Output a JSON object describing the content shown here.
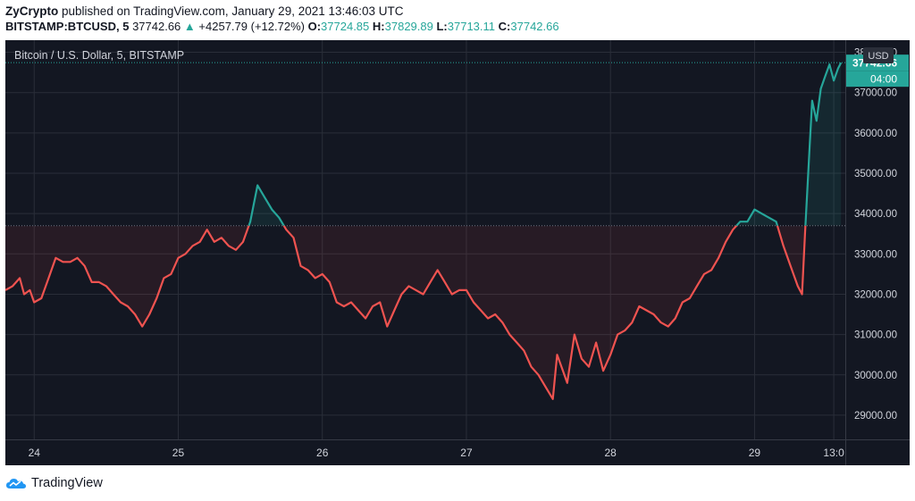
{
  "publish_line": {
    "author": "ZyCrypto",
    "text": "published on TradingView.com, January 29, 2021 13:46:03 UTC"
  },
  "quote_line": {
    "symbol": "BITSTAMP:BTCUSD, 5",
    "last": "37742.66",
    "arrow": "▲",
    "change": "+4257.79 (+12.72%)",
    "o_label": "O:",
    "o_value": "37724.85",
    "h_label": "H:",
    "h_value": "37829.89",
    "l_label": "L:",
    "l_value": "37713.11",
    "c_label": "C:",
    "c_value": "37742.66"
  },
  "colors": {
    "background": "#131722",
    "grid": "#2a2e39",
    "up": "#26a69a",
    "down": "#ef5350",
    "axis_text": "#d1d4dc"
  },
  "footer": {
    "logo_icon": "tradingview-cloud-icon",
    "text": "TradingView"
  },
  "chart_data": {
    "type": "line",
    "title": "Bitcoin / U.S. Dollar, 5, BITSTAMP",
    "currency": "USD",
    "ylim": [
      28400,
      38300
    ],
    "yticks": [
      "38000.00",
      "37000.00",
      "36000.00",
      "35000.00",
      "34000.00",
      "33000.00",
      "32000.00",
      "31000.00",
      "30000.00",
      "29000.00"
    ],
    "yticks_values": [
      38000,
      37000,
      36000,
      35000,
      34000,
      33000,
      32000,
      31000,
      30000,
      29000
    ],
    "xticks": [
      {
        "label": "24",
        "t": 24
      },
      {
        "label": "25",
        "t": 25
      },
      {
        "label": "26",
        "t": 26
      },
      {
        "label": "27",
        "t": 27
      },
      {
        "label": "28",
        "t": 28
      },
      {
        "label": "29",
        "t": 29
      },
      {
        "label": "13:0",
        "t": 29.55
      }
    ],
    "xlim": [
      23.8,
      29.63
    ],
    "baseline": 33700,
    "last_price_label": "37742.66",
    "countdown_label": "04:00",
    "grid": true,
    "series": [
      {
        "x": [
          23.8,
          23.85,
          23.9,
          23.93,
          23.97,
          24.0,
          24.05,
          24.1,
          24.15,
          24.2,
          24.25,
          24.3,
          24.35,
          24.4,
          24.45,
          24.5,
          24.55,
          24.6,
          24.65,
          24.7,
          24.75,
          24.8,
          24.85,
          24.9,
          24.95,
          25.0,
          25.05,
          25.1,
          25.15,
          25.2,
          25.25,
          25.3,
          25.35,
          25.4,
          25.45,
          25.5,
          25.55,
          25.6,
          25.65,
          25.7,
          25.75,
          25.8,
          25.85,
          25.9,
          25.95,
          26.0,
          26.05,
          26.1,
          26.15,
          26.2,
          26.25,
          26.3,
          26.35,
          26.4,
          26.45,
          26.5,
          26.55,
          26.6,
          26.65,
          26.7,
          26.75,
          26.8,
          26.85,
          26.9,
          26.95,
          27.0,
          27.05,
          27.1,
          27.15,
          27.2,
          27.25,
          27.3,
          27.35,
          27.4,
          27.45,
          27.5,
          27.55,
          27.6,
          27.63,
          27.67,
          27.7,
          27.75,
          27.8,
          27.85,
          27.9,
          27.95,
          28.0,
          28.05,
          28.1,
          28.15,
          28.2,
          28.25,
          28.3,
          28.35,
          28.4,
          28.45,
          28.5,
          28.55,
          28.6,
          28.65,
          28.7,
          28.75,
          28.8,
          28.85,
          28.9,
          28.95,
          29.0,
          29.05,
          29.1,
          29.15,
          29.2,
          29.25,
          29.3,
          29.33,
          29.35,
          29.38,
          29.4,
          29.43,
          29.46,
          29.49,
          29.52,
          29.55,
          29.58,
          29.6
        ],
        "y": [
          32100,
          32200,
          32400,
          32000,
          32100,
          31800,
          31900,
          32400,
          32900,
          32800,
          32800,
          32900,
          32700,
          32300,
          32300,
          32200,
          32000,
          31800,
          31700,
          31500,
          31200,
          31500,
          31900,
          32400,
          32500,
          32900,
          33000,
          33200,
          33300,
          33600,
          33300,
          33400,
          33200,
          33100,
          33300,
          33800,
          34700,
          34400,
          34100,
          33900,
          33600,
          33400,
          32700,
          32600,
          32400,
          32500,
          32300,
          31800,
          31700,
          31800,
          31600,
          31400,
          31700,
          31800,
          31200,
          31600,
          32000,
          32200,
          32100,
          32000,
          32300,
          32600,
          32300,
          32000,
          32100,
          32100,
          31800,
          31600,
          31400,
          31500,
          31300,
          31000,
          30800,
          30600,
          30200,
          30000,
          29700,
          29400,
          30500,
          30100,
          29800,
          31000,
          30400,
          30200,
          30800,
          30100,
          30500,
          31000,
          31100,
          31300,
          31700,
          31600,
          31500,
          31300,
          31200,
          31400,
          31800,
          31900,
          32200,
          32500,
          32600,
          32900,
          33300,
          33600,
          33800,
          33800,
          34100,
          34000,
          33900,
          33800,
          33200,
          32700,
          32200,
          32000,
          33500,
          35500,
          36800,
          36300,
          37100,
          37400,
          37700,
          37300,
          37600,
          37742.66
        ]
      }
    ]
  }
}
